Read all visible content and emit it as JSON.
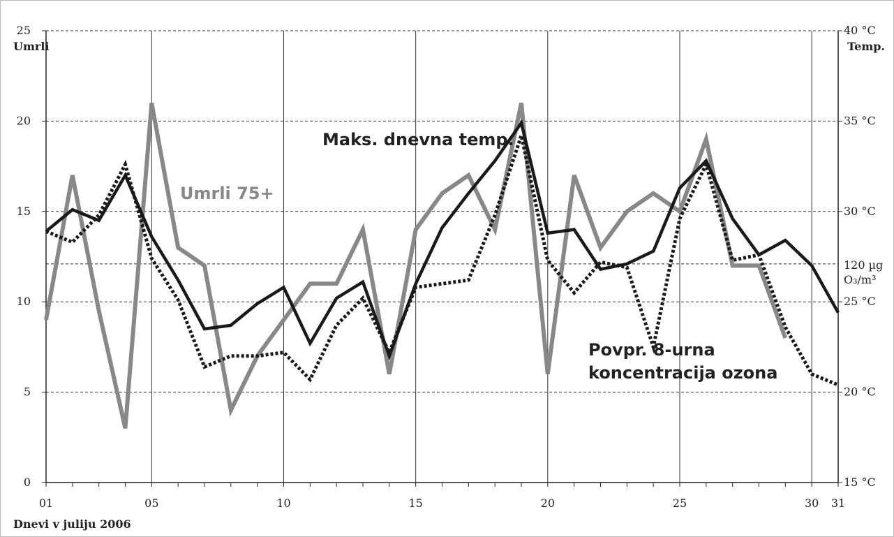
{
  "chart_data": {
    "type": "line",
    "x": [
      1,
      2,
      3,
      4,
      5,
      6,
      7,
      8,
      9,
      10,
      11,
      12,
      13,
      14,
      15,
      16,
      17,
      18,
      19,
      20,
      21,
      22,
      23,
      24,
      25,
      26,
      27,
      28,
      29,
      30,
      31
    ],
    "x_tick_values": [
      1,
      5,
      10,
      15,
      20,
      25,
      30,
      31
    ],
    "x_tick_labels": [
      "01",
      "05",
      "10",
      "15",
      "20",
      "25",
      "30",
      "31"
    ],
    "xlabel": "Dnevi v juliju 2006",
    "xlim": [
      1,
      31
    ],
    "y_left": {
      "label": "Umrli",
      "ylim": [
        0,
        25
      ],
      "ticks": [
        "0",
        "5",
        "10",
        "15",
        "20",
        "25"
      ]
    },
    "y_right": {
      "label": "Temp.",
      "ylim": [
        15,
        40
      ],
      "ticks": [
        {
          "value": 15,
          "label": "15 °C"
        },
        {
          "value": 20,
          "label": "20 °C"
        },
        {
          "value": 25,
          "label": "25 °C"
        },
        {
          "value": 30,
          "label": "30 °C"
        },
        {
          "value": 35,
          "label": "35 °C"
        },
        {
          "value": 40,
          "label": "40 °C"
        }
      ],
      "ozone_reference": {
        "label_line1": "120 µg",
        "label_line2": "O₃/m³",
        "value_on_left_axis": 12.1
      }
    },
    "grid": {
      "horizontal": "dashed",
      "vertical": "solid"
    },
    "series": [
      {
        "name": "Umrli 75+",
        "axis": "left",
        "style": "solid",
        "color": "#888888",
        "values": [
          9,
          17,
          9.5,
          3,
          21,
          13,
          12,
          4,
          7,
          9,
          11,
          11,
          14,
          6,
          14,
          16,
          17,
          14,
          21,
          6,
          17,
          13,
          15,
          16,
          15,
          19,
          12,
          12,
          8,
          null,
          null
        ]
      },
      {
        "name": "Maks. dnevna temp.",
        "axis": "right",
        "style": "solid",
        "color": "#1a1a1a",
        "values": [
          28.9,
          30.1,
          29.5,
          32,
          28.6,
          26.2,
          23.5,
          23.7,
          24.9,
          25.8,
          22.7,
          25.2,
          26.1,
          22.0,
          26.0,
          29.1,
          31.0,
          32.8,
          34.9,
          28.8,
          29.0,
          26.8,
          27.1,
          27.8,
          31.3,
          32.8,
          29.6,
          27.6,
          28.4,
          27.0,
          24.4
        ]
      },
      {
        "name": "Povpr. 8-urna koncentracija ozona",
        "axis": "left",
        "style": "dotted",
        "color": "#1a1a1a",
        "values": [
          13.9,
          13.3,
          14.8,
          17.6,
          12.4,
          10.1,
          6.4,
          7.0,
          7.0,
          7.2,
          5.7,
          8.7,
          10.2,
          7.2,
          10.8,
          11.0,
          11.2,
          14.8,
          19.2,
          12.3,
          10.5,
          12.2,
          11.9,
          7.5,
          14.6,
          17.6,
          12.3,
          12.6,
          8.6,
          6.0,
          5.4
        ]
      }
    ],
    "annotations": [
      {
        "text": "Umrli 75+",
        "series": 0,
        "color": "#888888"
      },
      {
        "text": "Maks. dnevna temp.",
        "series": 1,
        "color": "#222222"
      },
      {
        "text": "Povpr. 8-urna",
        "series": 2,
        "color": "#222222"
      },
      {
        "text": "koncentracija ozona",
        "series": 2,
        "color": "#222222"
      }
    ]
  }
}
